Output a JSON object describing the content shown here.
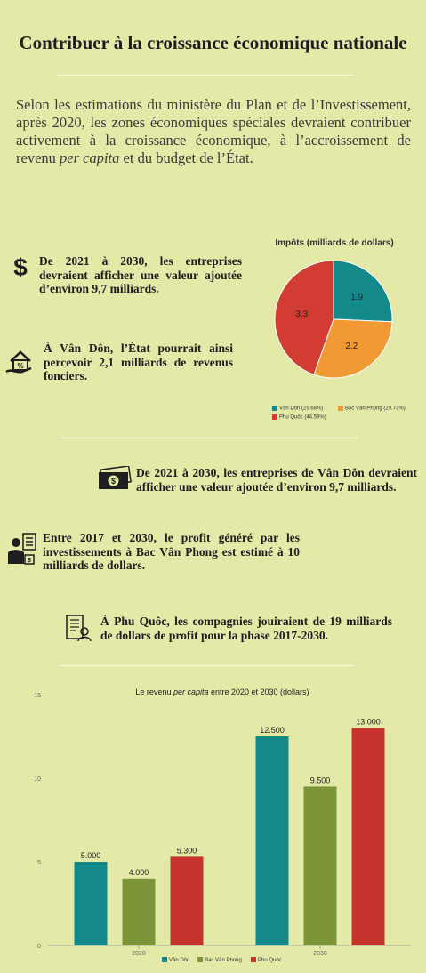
{
  "title": "Contribuer à la croissance économique nationale",
  "intro": {
    "part1": "Selon les estimations du ministère du Plan et de l’Investissement, après 2020, les zones économiques spéciales devraient contribuer activement à la croissance économique, à l’accroissement de revenu ",
    "italic": "per capita",
    "part2": " et du budget de l’État."
  },
  "stats": {
    "s1": "De 2021 à 2030, les entreprises devraient afficher une valeur ajoutée d’environ 9,7 milliards.",
    "s2": "À Vân Dôn, l’État pourrait ainsi percevoir 2,1 milliards de revenus fonciers.",
    "s3": "De 2021 à 2030, les entreprises de Vân Dôn devraient afficher une valeur ajoutée d’environ 9,7 milliards.",
    "s4": "Entre 2017 et 2030, le profit généré par les investissements à Bac Vân Phong est estimé à 10 milliards de dollars.",
    "s5": "À Phu Quôc, les compagnies jouiraient de 19 milliards de dollars de profit pour la phase 2017-2030."
  },
  "icons": [
    "dollar-icon",
    "house-percent-icon",
    "banknote-icon",
    "investor-icon",
    "building-document-icon"
  ],
  "colors": {
    "teal": "#138989",
    "orange": "#f19a34",
    "red": "#d23c32",
    "olive": "#7c9538",
    "bar_red": "#c8322f",
    "background": "#e4e9a8"
  },
  "chart_data": [
    {
      "type": "pie",
      "title": "Impôts (milliards de dollars)",
      "categories": [
        "Vân Dôn",
        "Bac Vân Phong",
        "Phu Quôc"
      ],
      "values": [
        1.9,
        2.2,
        3.3
      ],
      "value_labels": [
        "1.9",
        "2.2",
        "3.3"
      ],
      "legend": [
        "Vân Dôn (25.68%)",
        "Bac Vân Phong (29.73%)",
        "Phu Quôc (44.59%)"
      ],
      "legend_position": "bottom"
    },
    {
      "type": "bar",
      "title_prefix": "Le revenu ",
      "title_italic": "per capita",
      "title_suffix": " entre 2020 et 2030 (dollars)",
      "categories": [
        "2020",
        "2030"
      ],
      "series": [
        {
          "name": "Vân Dôn",
          "values": [
            5000,
            12500
          ],
          "labels": [
            "5.000",
            "12.500"
          ]
        },
        {
          "name": "Bac Vân Phong",
          "values": [
            4000,
            9500
          ],
          "labels": [
            "4.000",
            "9.500"
          ]
        },
        {
          "name": "Phu Quôc",
          "values": [
            5300,
            13000
          ],
          "labels": [
            "5.300",
            "13.000"
          ]
        }
      ],
      "ylim": [
        0,
        15000
      ],
      "y_ticks": [
        0,
        5000,
        10000,
        15000
      ],
      "y_tick_labels": [
        "0",
        "5",
        "10",
        "15"
      ],
      "grid": false,
      "legend_position": "bottom"
    }
  ]
}
